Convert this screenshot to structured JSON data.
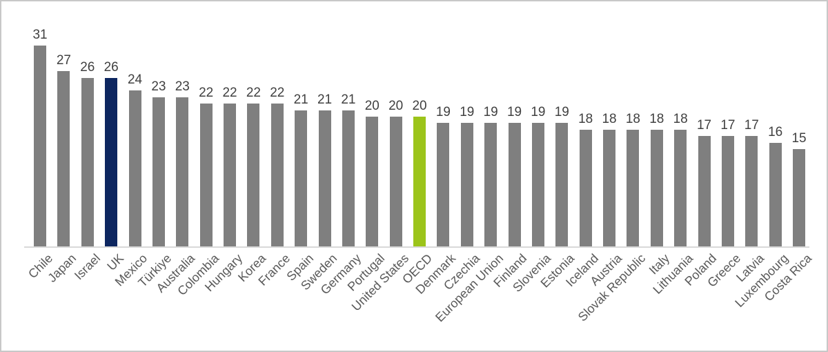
{
  "chart_data": {
    "type": "bar",
    "title": "",
    "xlabel": "",
    "ylabel": "",
    "ylim": [
      0,
      33
    ],
    "grid": false,
    "legend_position": "none",
    "value_labels_shown": true,
    "x_tick_rotation_deg": 45,
    "categories": [
      "Chile",
      "Japan",
      "Israel",
      "UK",
      "Mexico",
      "Türkiye",
      "Australia",
      "Colombia",
      "Hungary",
      "Korea",
      "France",
      "Spain",
      "Sweden",
      "Germany",
      "Portugal",
      "United States",
      "OECD",
      "Denmark",
      "Czechia",
      "European Union",
      "Finland",
      "Slovenia",
      "Estonia",
      "Iceland",
      "Austria",
      "Slovak Republic",
      "Italy",
      "Lithuania",
      "Poland",
      "Greece",
      "Latvia",
      "Luxembourg",
      "Costa Rica"
    ],
    "values": [
      31,
      27,
      26,
      26,
      24,
      23,
      23,
      22,
      22,
      22,
      22,
      21,
      21,
      21,
      20,
      20,
      20,
      19,
      19,
      19,
      19,
      19,
      19,
      18,
      18,
      18,
      18,
      18,
      17,
      17,
      17,
      16,
      15
    ],
    "highlighted_bars": {
      "UK": "highlight_uk",
      "OECD": "highlight_oecd"
    },
    "colors": {
      "default_bar": "#7F7F7F",
      "highlight_uk": "#0D2660",
      "highlight_oecd": "#9CC41A",
      "value_label": "#404040",
      "axis_label": "#595959",
      "axis_line": "#D9D9D9",
      "frame_border": "#C8C8C8",
      "background": "#FFFFFF"
    }
  }
}
